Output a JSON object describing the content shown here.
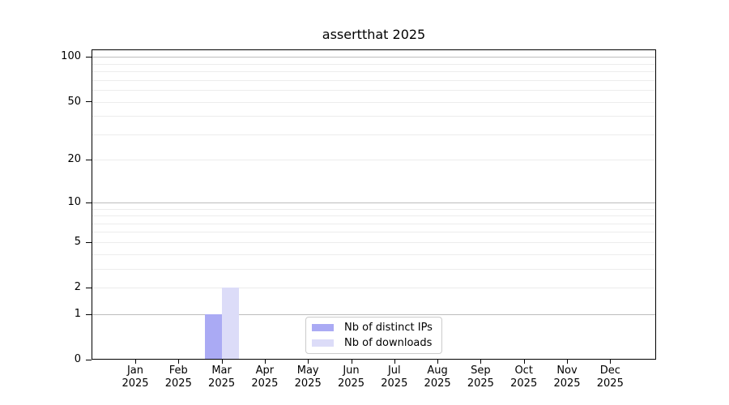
{
  "chart_data": {
    "type": "bar",
    "title": "assertthat 2025",
    "categories": [
      "Jan",
      "Feb",
      "Mar",
      "Apr",
      "May",
      "Jun",
      "Jul",
      "Aug",
      "Sep",
      "Oct",
      "Nov",
      "Dec"
    ],
    "category_year": "2025",
    "series": [
      {
        "name": "Nb of distinct IPs",
        "color": "#aaaaf4",
        "values": [
          0,
          0,
          1,
          0,
          0,
          0,
          0,
          0,
          0,
          0,
          0,
          0
        ]
      },
      {
        "name": "Nb of downloads",
        "color": "#dcdcf8",
        "values": [
          0,
          0,
          2,
          0,
          0,
          0,
          0,
          0,
          0,
          0,
          0,
          0
        ]
      }
    ],
    "xlabel": "",
    "ylabel": "",
    "yscale": "log10(x+1)",
    "y_tick_labels": [
      0,
      1,
      2,
      5,
      10,
      20,
      50,
      100
    ],
    "y_minor_gridlines": [
      3,
      4,
      6,
      7,
      8,
      9,
      30,
      40,
      60,
      70,
      80,
      90
    ],
    "y_decade_gridlines": [
      1,
      10,
      100
    ],
    "ylim": [
      0,
      112
    ],
    "grid": "horizontal",
    "legend_position": "inside-bottom-center",
    "colors": {
      "decade_grid": "#bdbdbd",
      "minor_grid": "#ececec",
      "axis": "#000000",
      "legend_border": "#cccccc",
      "background": "#ffffff"
    }
  }
}
